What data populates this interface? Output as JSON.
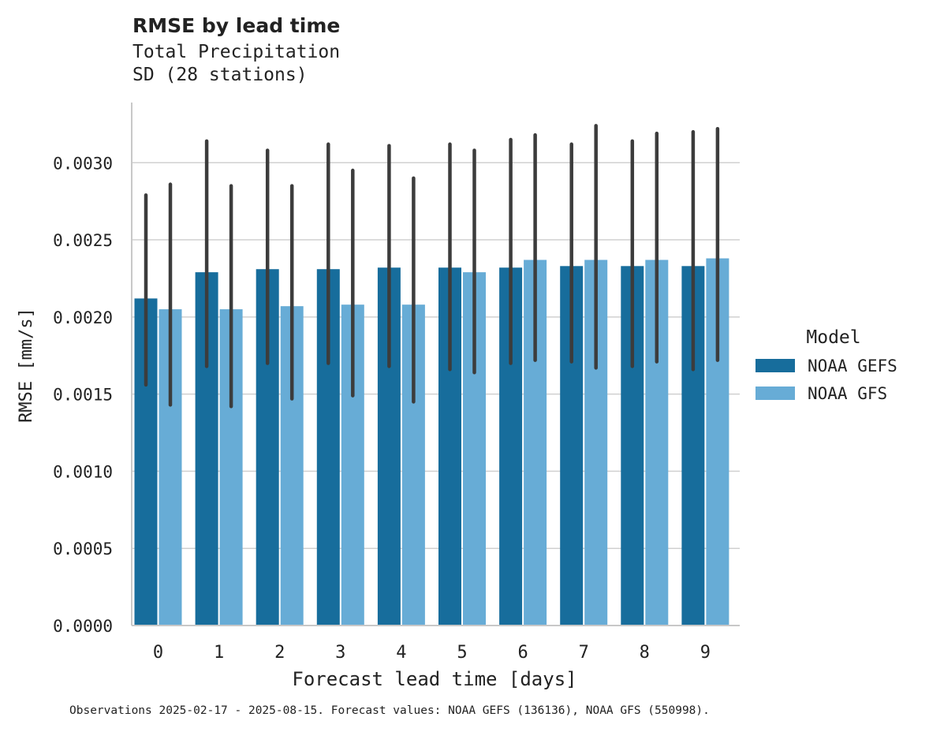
{
  "chart_data": {
    "type": "bar",
    "title": "RMSE by lead time",
    "subtitle_lines": [
      "Total Precipitation",
      "SD (28 stations)"
    ],
    "xlabel": "Forecast lead time [days]",
    "ylabel": "RMSE [mm/s]",
    "categories": [
      "0",
      "1",
      "2",
      "3",
      "4",
      "5",
      "6",
      "7",
      "8",
      "9"
    ],
    "ylim": [
      0,
      0.00339
    ],
    "yticks": [
      0.0,
      0.0005,
      0.001,
      0.0015,
      0.002,
      0.0025,
      0.003
    ],
    "ytick_labels": [
      "0.0000",
      "0.0005",
      "0.0010",
      "0.0015",
      "0.0020",
      "0.0025",
      "0.0030"
    ],
    "grid": "horizontal",
    "legend": {
      "title": "Model",
      "placement": "right"
    },
    "series": [
      {
        "name": "NOAA GEFS",
        "color": "#176d9c",
        "values": [
          0.00212,
          0.00229,
          0.00231,
          0.00231,
          0.00232,
          0.00232,
          0.00232,
          0.00233,
          0.00233,
          0.00233
        ],
        "err_low": [
          0.00156,
          0.00168,
          0.0017,
          0.0017,
          0.00168,
          0.00166,
          0.0017,
          0.00171,
          0.00168,
          0.00166
        ],
        "err_high": [
          0.00279,
          0.00314,
          0.00308,
          0.00312,
          0.00311,
          0.00312,
          0.00315,
          0.00312,
          0.00314,
          0.0032
        ]
      },
      {
        "name": "NOAA GFS",
        "color": "#67acd6",
        "values": [
          0.00205,
          0.00205,
          0.00207,
          0.00208,
          0.00208,
          0.00229,
          0.00237,
          0.00237,
          0.00237,
          0.00238
        ],
        "err_low": [
          0.00143,
          0.00142,
          0.00147,
          0.00149,
          0.00145,
          0.00164,
          0.00172,
          0.00167,
          0.00171,
          0.00172
        ],
        "err_high": [
          0.00286,
          0.00285,
          0.00285,
          0.00295,
          0.0029,
          0.00308,
          0.00318,
          0.00324,
          0.00319,
          0.00322
        ]
      }
    ],
    "footnote": "Observations 2025-02-17 - 2025-08-15. Forecast values: NOAA GEFS (136136), NOAA GFS (550998)."
  }
}
